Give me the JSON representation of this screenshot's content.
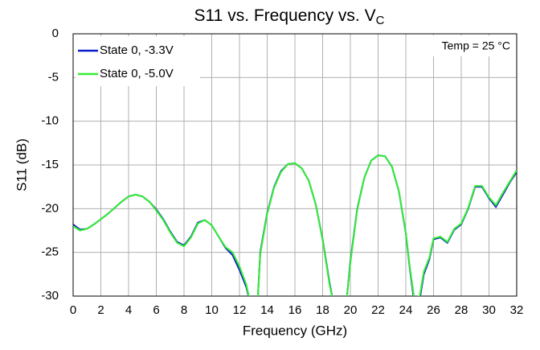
{
  "chart_data": {
    "type": "line",
    "title": "S11 vs. Frequency vs. V",
    "title_subscript": "C",
    "annotation": "Temp = 25 °C",
    "x_label": "Frequency (GHz)",
    "y_label": "S11 (dB)",
    "xlim": [
      0,
      32
    ],
    "xticks": [
      0,
      2,
      4,
      6,
      8,
      10,
      12,
      14,
      16,
      18,
      20,
      22,
      24,
      26,
      28,
      30,
      32
    ],
    "ylim": [
      -30,
      0
    ],
    "yticks": [
      0,
      -5,
      -10,
      -15,
      -20,
      -25,
      -30
    ],
    "grid": true,
    "legend": "upper left",
    "x": [
      0,
      0.5,
      1,
      1.5,
      2,
      2.5,
      3,
      3.5,
      4,
      4.5,
      5,
      5.5,
      6,
      6.5,
      7,
      7.5,
      8,
      8.5,
      9,
      9.5,
      10,
      10.5,
      11,
      11.5,
      12,
      12.5,
      12.8,
      13.3,
      13.5,
      14,
      14.5,
      15,
      15.5,
      16,
      16.5,
      17,
      17.5,
      18,
      18.5,
      18.8,
      19.7,
      20,
      20.5,
      21,
      21.5,
      22,
      22.5,
      23,
      23.5,
      24,
      24.3,
      24.6,
      25,
      25.3,
      25.7,
      26,
      26.5,
      27,
      27.5,
      28,
      28.5,
      29,
      29.5,
      30,
      30.5,
      31,
      31.5,
      32
    ],
    "series": [
      {
        "name": "State 0, -3.3V",
        "color": "#0a1ec8",
        "values": [
          -21.8,
          -22.4,
          -22.3,
          -21.8,
          -21.2,
          -20.6,
          -19.9,
          -19.2,
          -18.6,
          -18.4,
          -18.6,
          -19.2,
          -20.1,
          -21.2,
          -22.6,
          -23.8,
          -24.2,
          -23.2,
          -21.6,
          -21.3,
          -21.9,
          -23.2,
          -24.5,
          -25.3,
          -27.0,
          -29.0,
          -31,
          -31,
          -25.0,
          -20.5,
          -17.5,
          -15.7,
          -14.9,
          -14.8,
          -15.4,
          -16.8,
          -19.5,
          -23.5,
          -28.5,
          -31,
          -31,
          -26.0,
          -20.0,
          -16.5,
          -14.5,
          -13.9,
          -14.0,
          -15.2,
          -18.0,
          -22.8,
          -27.0,
          -30.6,
          -30.4,
          -27.5,
          -25.8,
          -23.5,
          -23.3,
          -23.9,
          -22.4,
          -21.8,
          -20.0,
          -17.5,
          -17.5,
          -18.8,
          -19.8,
          -18.4,
          -17.0,
          -15.8
        ]
      },
      {
        "name": "State 0, -5.0V",
        "color": "#33ee33",
        "values": [
          -22.0,
          -22.5,
          -22.3,
          -21.8,
          -21.2,
          -20.6,
          -19.9,
          -19.2,
          -18.6,
          -18.4,
          -18.6,
          -19.2,
          -20.2,
          -21.3,
          -22.7,
          -23.9,
          -24.3,
          -23.3,
          -21.7,
          -21.3,
          -21.9,
          -23.2,
          -24.4,
          -25.0,
          -26.6,
          -28.7,
          -31,
          -31,
          -25.2,
          -20.6,
          -17.6,
          -15.8,
          -14.9,
          -14.8,
          -15.4,
          -16.8,
          -19.5,
          -23.6,
          -28.7,
          -31,
          -31,
          -26.2,
          -20.1,
          -16.5,
          -14.5,
          -13.9,
          -14.0,
          -15.2,
          -18.0,
          -22.7,
          -26.8,
          -30.2,
          -30.0,
          -27.2,
          -25.6,
          -23.4,
          -23.2,
          -23.8,
          -22.3,
          -21.7,
          -19.9,
          -17.4,
          -17.4,
          -18.7,
          -19.6,
          -18.2,
          -16.9,
          -15.6
        ]
      }
    ]
  }
}
